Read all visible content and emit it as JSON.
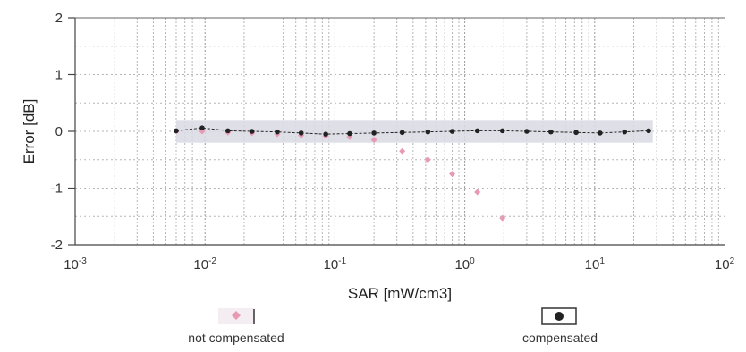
{
  "chart_data": {
    "type": "scatter",
    "xscale": "log",
    "xlim": [
      0.001,
      100
    ],
    "ylim": [
      -2,
      2
    ],
    "xlabel": "SAR [mW/cm3]",
    "ylabel": "Error [dB]",
    "grid": true,
    "band": {
      "ymin": -0.2,
      "ymax": 0.2,
      "xmin": 0.006,
      "xmax": 28
    },
    "xticks": [
      {
        "mant": "10",
        "exp": "-3",
        "v": 0.001
      },
      {
        "mant": "10",
        "exp": "-2",
        "v": 0.01
      },
      {
        "mant": "10",
        "exp": "-1",
        "v": 0.1
      },
      {
        "mant": "10",
        "exp": "0",
        "v": 1
      },
      {
        "mant": "10",
        "exp": "1",
        "v": 10
      },
      {
        "mant": "10",
        "exp": "2",
        "v": 100
      }
    ],
    "yticks": [
      {
        "label": "2",
        "v": 2
      },
      {
        "label": "1",
        "v": 1
      },
      {
        "label": "0",
        "v": 0
      },
      {
        "label": "-1",
        "v": -1
      },
      {
        "label": "-2",
        "v": -2
      }
    ],
    "series": [
      {
        "name": "not compensated",
        "color": "#e89ab3",
        "marker": "diamond",
        "x": [
          0.006,
          0.0095,
          0.015,
          0.023,
          0.036,
          0.055,
          0.085,
          0.13,
          0.2,
          0.33,
          0.52,
          0.8,
          1.25,
          1.95
        ],
        "y": [
          0.0,
          0.0,
          -0.02,
          -0.03,
          -0.05,
          -0.07,
          -0.08,
          -0.1,
          -0.15,
          -0.35,
          -0.5,
          -0.75,
          -1.07,
          -1.53
        ]
      },
      {
        "name": "compensated",
        "color": "#222222",
        "marker": "circle",
        "line": true,
        "x": [
          0.006,
          0.0095,
          0.015,
          0.023,
          0.036,
          0.055,
          0.085,
          0.13,
          0.2,
          0.33,
          0.52,
          0.8,
          1.25,
          1.95,
          3.0,
          4.6,
          7.2,
          11.0,
          17.0,
          26.0
        ],
        "y": [
          0.01,
          0.06,
          0.01,
          0.0,
          -0.01,
          -0.03,
          -0.05,
          -0.04,
          -0.03,
          -0.02,
          -0.01,
          0.0,
          0.01,
          0.01,
          0.0,
          -0.01,
          -0.02,
          -0.03,
          -0.01,
          0.01
        ]
      }
    ]
  },
  "legend": {
    "not_compensated_label": "not compensated",
    "compensated_label": "compensated"
  }
}
